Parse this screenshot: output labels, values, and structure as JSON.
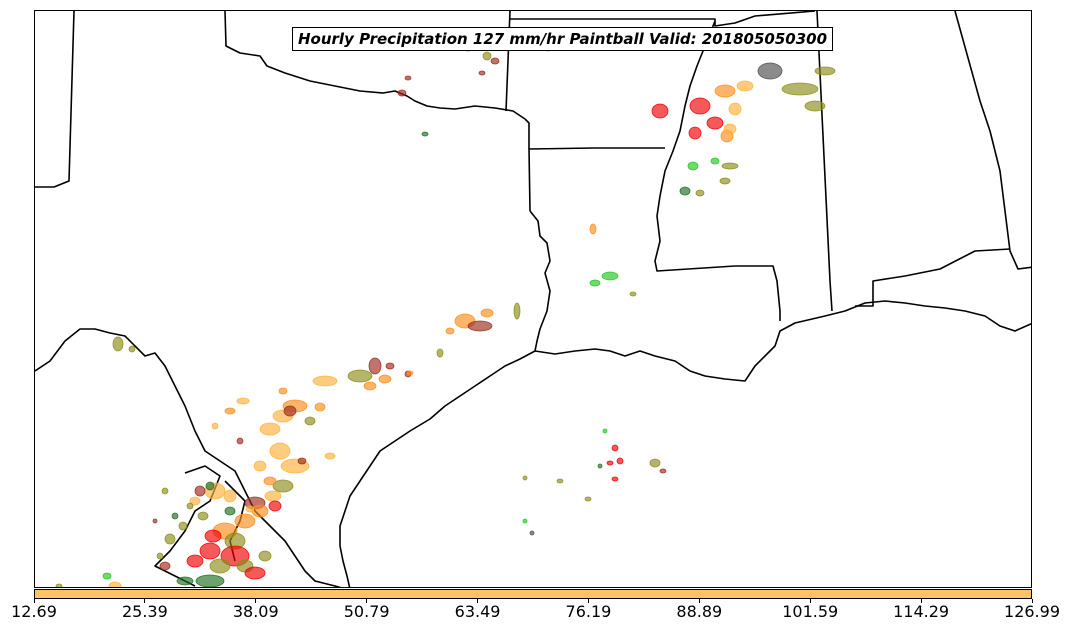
{
  "title": "Hourly Precipitation 127 mm/hr Paintball Valid: 201805050300",
  "colorbar": {
    "fill_color": "#ffc266",
    "ticks": [
      "12.69",
      "25.39",
      "38.09",
      "50.79",
      "63.49",
      "76.19",
      "88.89",
      "101.59",
      "114.29",
      "126.99"
    ]
  },
  "paintball_colors": {
    "red": "#f00000",
    "orange": "#ff8c1a",
    "light_orange": "#ffb13b",
    "olive": "#8c8c1a",
    "green": "#1ec81e",
    "dark_green": "#1e6e1e",
    "brown": "#9b2b1b",
    "gray": "#4d4d4d"
  },
  "map": {
    "boundary_color": "#000000",
    "background": "#ffffff"
  }
}
